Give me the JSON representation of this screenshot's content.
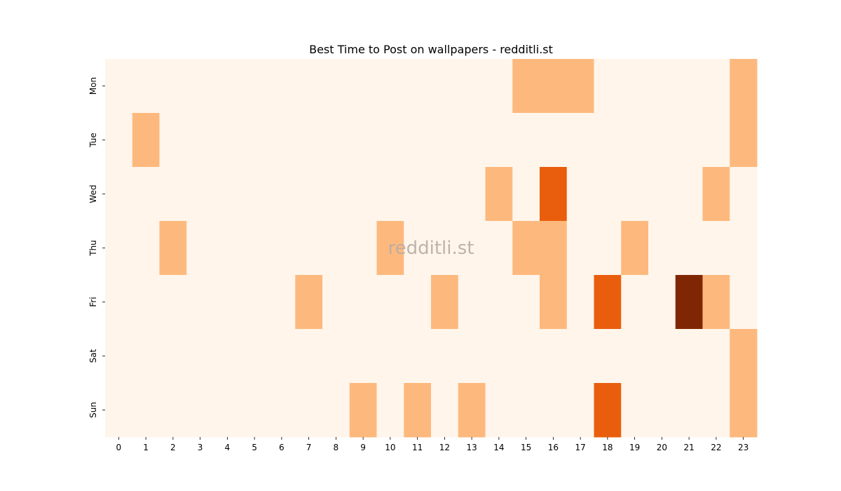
{
  "chart_data": {
    "type": "heatmap",
    "title": "Best Time to Post on wallpapers - redditli.st",
    "watermark": "redditli.st",
    "xlabel": "",
    "ylabel": "",
    "x_categories": [
      "0",
      "1",
      "2",
      "3",
      "4",
      "5",
      "6",
      "7",
      "8",
      "9",
      "10",
      "11",
      "12",
      "13",
      "14",
      "15",
      "16",
      "17",
      "18",
      "19",
      "20",
      "21",
      "22",
      "23"
    ],
    "y_categories": [
      "Mon",
      "Tue",
      "Wed",
      "Thu",
      "Fri",
      "Sat",
      "Sun"
    ],
    "colormap": [
      "#fff5eb",
      "#fdb97d",
      "#e95e0d",
      "#7f2704"
    ],
    "values": [
      [
        0,
        0,
        0,
        0,
        0,
        0,
        0,
        0,
        0,
        0,
        0,
        0,
        0,
        0,
        0,
        1,
        1,
        1,
        0,
        0,
        0,
        0,
        0,
        1
      ],
      [
        0,
        1,
        0,
        0,
        0,
        0,
        0,
        0,
        0,
        0,
        0,
        0,
        0,
        0,
        0,
        0,
        0,
        0,
        0,
        0,
        0,
        0,
        0,
        1
      ],
      [
        0,
        0,
        0,
        0,
        0,
        0,
        0,
        0,
        0,
        0,
        0,
        0,
        0,
        0,
        1,
        0,
        2,
        0,
        0,
        0,
        0,
        0,
        1,
        0
      ],
      [
        0,
        0,
        1,
        0,
        0,
        0,
        0,
        0,
        0,
        0,
        1,
        0,
        0,
        0,
        0,
        1,
        1,
        0,
        0,
        1,
        0,
        0,
        0,
        0
      ],
      [
        0,
        0,
        0,
        0,
        0,
        0,
        0,
        1,
        0,
        0,
        0,
        0,
        1,
        0,
        0,
        0,
        1,
        0,
        2,
        0,
        0,
        3,
        1,
        0
      ],
      [
        0,
        0,
        0,
        0,
        0,
        0,
        0,
        0,
        0,
        0,
        0,
        0,
        0,
        0,
        0,
        0,
        0,
        0,
        0,
        0,
        0,
        0,
        0,
        1
      ],
      [
        0,
        0,
        0,
        0,
        0,
        0,
        0,
        0,
        0,
        1,
        0,
        1,
        0,
        1,
        0,
        0,
        0,
        0,
        2,
        0,
        0,
        0,
        0,
        1
      ]
    ]
  }
}
